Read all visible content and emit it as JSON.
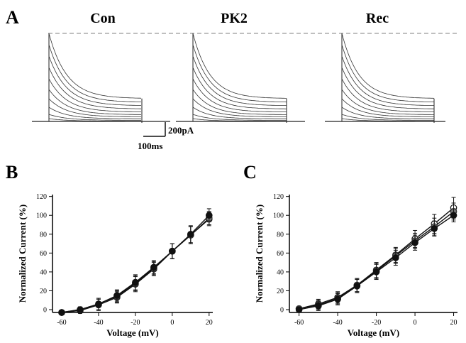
{
  "panel_a": {
    "letter": "A",
    "conditions": [
      "Con",
      "PK2",
      "Rec"
    ],
    "scale_bar": {
      "current_label": "200pA",
      "time_label": "100ms"
    }
  },
  "chart_data": [
    {
      "panel": "B",
      "type": "line",
      "xlabel": "Voltage (mV)",
      "ylabel": "Normalized Current (%)",
      "xlim": [
        -65,
        22
      ],
      "ylim": [
        -3,
        122
      ],
      "xticks": [
        -60,
        -40,
        -20,
        0,
        20
      ],
      "yticks": [
        0,
        20,
        40,
        60,
        80,
        100,
        120
      ],
      "x": [
        -60,
        -50,
        -40,
        -30,
        -20,
        -10,
        0,
        10,
        20
      ],
      "series": [
        {
          "marker": "filled",
          "values": [
            -3,
            0,
            6,
            15,
            29,
            45,
            62,
            80,
            100
          ],
          "errors": [
            1,
            3,
            6,
            6,
            8,
            7,
            8,
            9,
            7
          ]
        },
        {
          "marker": "open",
          "values": [
            -3,
            -1,
            5,
            13,
            27,
            43,
            62,
            79,
            96
          ],
          "errors": [
            1,
            3,
            6,
            6,
            8,
            7,
            8,
            9,
            7
          ]
        },
        {
          "marker": "gray",
          "values": [
            -3,
            0,
            6,
            14,
            28,
            44,
            62,
            79,
            97
          ],
          "errors": [
            1,
            3,
            6,
            6,
            8,
            7,
            8,
            9,
            7
          ]
        }
      ]
    },
    {
      "panel": "C",
      "type": "line",
      "xlabel": "Voltage (mV)",
      "ylabel": "Normalized Current (%)",
      "xlim": [
        -65,
        22
      ],
      "ylim": [
        -3,
        122
      ],
      "xticks": [
        -60,
        -40,
        -20,
        0,
        20
      ],
      "yticks": [
        0,
        20,
        40,
        60,
        80,
        100,
        120
      ],
      "x": [
        -60,
        -50,
        -40,
        -30,
        -20,
        -10,
        0,
        10,
        20
      ],
      "series": [
        {
          "marker": "filled",
          "values": [
            0,
            4,
            11,
            25,
            40,
            55,
            71,
            86,
            100
          ],
          "errors": [
            2,
            5,
            6,
            7,
            8,
            8,
            8,
            8,
            7
          ]
        },
        {
          "marker": "open",
          "values": [
            1,
            6,
            13,
            26,
            42,
            58,
            75,
            91,
            108
          ],
          "errors": [
            2,
            5,
            6,
            7,
            8,
            8,
            9,
            10,
            11
          ]
        },
        {
          "marker": "gray",
          "values": [
            1,
            5,
            12,
            26,
            41,
            57,
            73,
            88,
            104
          ],
          "errors": [
            2,
            5,
            6,
            7,
            8,
            8,
            8,
            9,
            9
          ]
        }
      ]
    }
  ]
}
